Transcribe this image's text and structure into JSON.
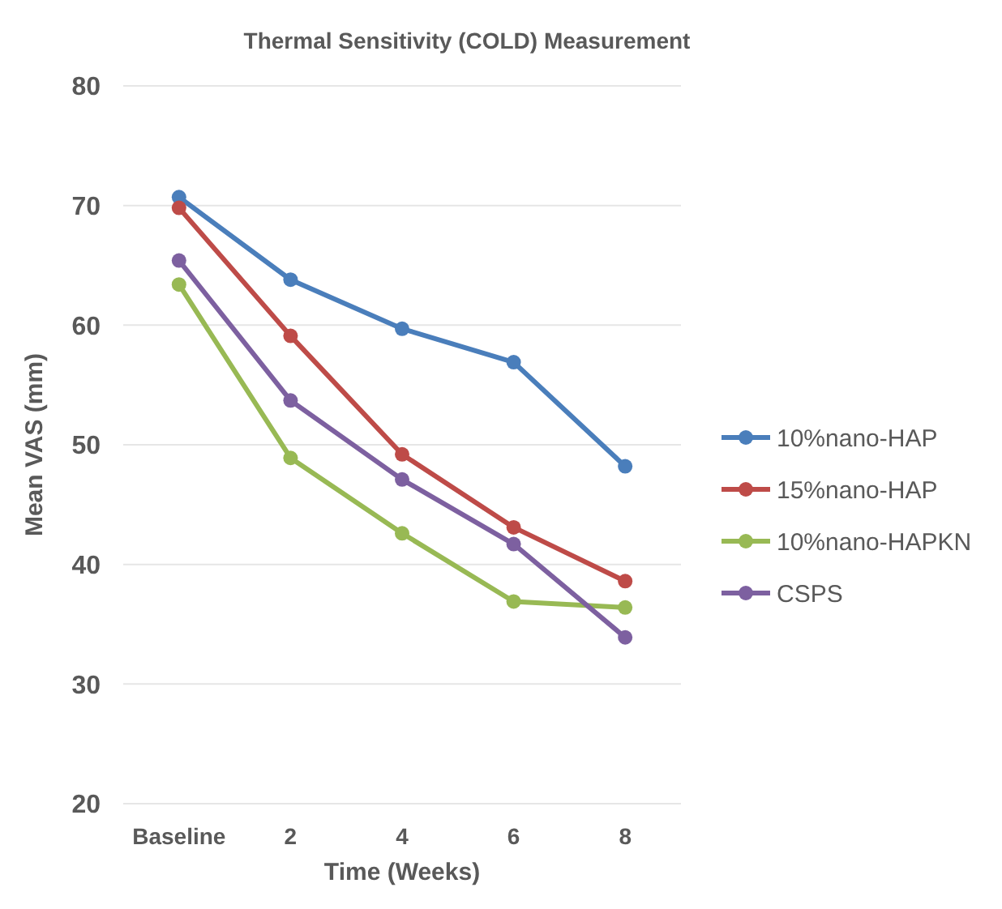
{
  "chart_data": {
    "type": "line",
    "title": "Thermal Sensitivity (COLD) Measurement",
    "xlabel": "Time (Weeks)",
    "ylabel": "Mean VAS (mm)",
    "categories": [
      "Baseline",
      "2",
      "4",
      "6",
      "8"
    ],
    "series": [
      {
        "name": "10%nano-HAP",
        "color": "#4a7ebb",
        "values": [
          70.7,
          63.8,
          59.7,
          56.9,
          48.2
        ]
      },
      {
        "name": "15%nano-HAP",
        "color": "#be4b48",
        "values": [
          69.8,
          59.1,
          49.2,
          43.1,
          38.6
        ]
      },
      {
        "name": "10%nano-HAPKN",
        "color": "#98b954",
        "values": [
          63.4,
          48.9,
          42.6,
          36.9,
          36.4
        ]
      },
      {
        "name": "CSPS",
        "color": "#7d60a0",
        "values": [
          65.4,
          53.7,
          47.1,
          41.7,
          33.9
        ]
      }
    ],
    "ylim": [
      20,
      80
    ],
    "yticks": [
      20,
      30,
      40,
      50,
      60,
      70,
      80
    ],
    "grid": "y",
    "legend": "right",
    "marker": "circle",
    "line_style": "solid"
  }
}
